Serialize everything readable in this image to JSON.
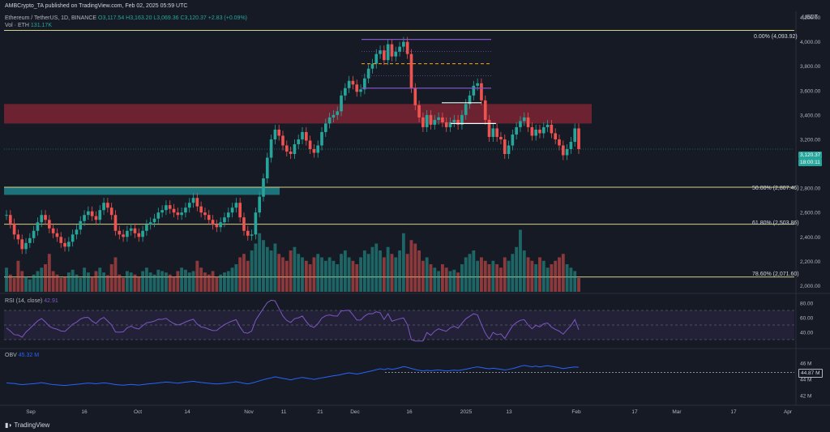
{
  "header": {
    "publisher": "AMBCrypto_TA published on TradingView.com, Feb 02, 2025 05:59 UTC",
    "symbol": "Ethereum / TetherUS, 1D, BINANCE",
    "ohlc": "O3,117.54 H3,163.20 L3,069.36 C3,120.37 +2.83 (+0.09%)",
    "volume": "Vol · ETH",
    "volume_value": "131.17K"
  },
  "price_axis": {
    "currency": "USDT",
    "ticks": [
      "4,200.00",
      "4,000.00",
      "3,800.00",
      "3,600.00",
      "3,400.00",
      "3,200.00",
      "3,000.00",
      "2,800.00",
      "2,600.00",
      "2,400.00",
      "2,200.00",
      "2,000.00"
    ],
    "last_price": "3,120.37",
    "countdown": "18:00:11"
  },
  "fib_levels": [
    {
      "label": "0.00% (4,093.92)",
      "price": 4093.92
    },
    {
      "label": "50.00% (2,807.46)",
      "price": 2807.46
    },
    {
      "label": "61.80% (2,503.86)",
      "price": 2503.86
    },
    {
      "label": "78.60% (2,071.60)",
      "price": 2071.6
    }
  ],
  "rsi": {
    "title": "RSI (14, close)",
    "value": "42.91",
    "ticks": [
      "80.00",
      "60.00",
      "40.00"
    ]
  },
  "obv": {
    "title": "OBV",
    "value": "45.32 M",
    "last": "44.87 M",
    "ticks": [
      "46 M",
      "44 M",
      "42 M"
    ]
  },
  "time_axis": [
    "Sep",
    "16",
    "Oct",
    "14",
    "Nov",
    "11",
    "21",
    "Dec",
    "16",
    "2025",
    "13",
    "Feb",
    "17",
    "Mar",
    "17",
    "Apr"
  ],
  "branding": "TradingView",
  "colors": {
    "up": "#26a69a",
    "down": "#ef5350",
    "fib": "#d6d28a",
    "supply": "#8b2635",
    "demand": "#1e8a91",
    "rsi": "#7e57c2",
    "obv": "#2962ff"
  },
  "chart_data": {
    "type": "candlestick",
    "price_range": [
      1950,
      4250
    ],
    "supply_zone": [
      3330,
      3490
    ],
    "demand_zone": [
      2745,
      2810
    ],
    "close_series": [
      2580,
      2510,
      2420,
      2380,
      2300,
      2350,
      2390,
      2450,
      2520,
      2580,
      2540,
      2470,
      2430,
      2400,
      2350,
      2320,
      2360,
      2420,
      2460,
      2530,
      2580,
      2610,
      2570,
      2540,
      2620,
      2680,
      2640,
      2580,
      2450,
      2420,
      2400,
      2450,
      2470,
      2430,
      2400,
      2450,
      2500,
      2520,
      2550,
      2600,
      2620,
      2660,
      2630,
      2600,
      2580,
      2600,
      2640,
      2680,
      2720,
      2650,
      2600,
      2580,
      2540,
      2500,
      2480,
      2520,
      2560,
      2600,
      2640,
      2680,
      2560,
      2450,
      2410,
      2420,
      2600,
      2730,
      2880,
      3050,
      3200,
      3280,
      3230,
      3150,
      3100,
      3080,
      3160,
      3200,
      3260,
      3190,
      3120,
      3090,
      3150,
      3260,
      3330,
      3380,
      3400,
      3430,
      3560,
      3620,
      3680,
      3650,
      3590,
      3610,
      3700,
      3780,
      3820,
      3900,
      3930,
      3850,
      3980,
      3880,
      3920,
      3960,
      4000,
      3900,
      3620,
      3480,
      3380,
      3300,
      3400,
      3320,
      3360,
      3380,
      3340,
      3300,
      3340,
      3360,
      3320,
      3400,
      3490,
      3560,
      3640,
      3660,
      3520,
      3360,
      3220,
      3290,
      3220,
      3200,
      3080,
      3150,
      3240,
      3300,
      3350,
      3380,
      3300,
      3230,
      3280,
      3250,
      3300,
      3320,
      3250,
      3200,
      3150,
      3070,
      3120,
      3180,
      3290,
      3120
    ],
    "volume_relative": [
      0.35,
      0.25,
      0.2,
      0.45,
      0.3,
      0.22,
      0.18,
      0.25,
      0.3,
      0.35,
      0.4,
      0.55,
      0.3,
      0.25,
      0.2,
      0.22,
      0.28,
      0.32,
      0.25,
      0.2,
      0.35,
      0.28,
      0.22,
      0.3,
      0.35,
      0.28,
      0.24,
      0.4,
      0.5,
      0.25,
      0.2,
      0.3,
      0.28,
      0.25,
      0.22,
      0.3,
      0.35,
      0.28,
      0.25,
      0.32,
      0.3,
      0.28,
      0.25,
      0.22,
      0.3,
      0.35,
      0.32,
      0.28,
      0.3,
      0.45,
      0.35,
      0.28,
      0.25,
      0.3,
      0.22,
      0.25,
      0.28,
      0.3,
      0.35,
      0.4,
      0.5,
      0.55,
      0.45,
      0.6,
      0.7,
      0.85,
      0.75,
      0.65,
      0.6,
      0.7,
      0.55,
      0.5,
      0.45,
      0.6,
      0.65,
      0.55,
      0.5,
      0.45,
      0.4,
      0.5,
      0.55,
      0.5,
      0.45,
      0.5,
      0.45,
      0.4,
      0.55,
      0.6,
      0.5,
      0.45,
      0.4,
      0.5,
      0.6,
      0.55,
      0.65,
      0.7,
      0.6,
      0.5,
      0.65,
      0.55,
      0.5,
      0.6,
      0.85,
      0.55,
      0.75,
      0.7,
      0.6,
      0.45,
      0.5,
      0.4,
      0.35,
      0.3,
      0.4,
      0.35,
      0.3,
      0.32,
      0.28,
      0.4,
      0.5,
      0.55,
      0.6,
      0.45,
      0.5,
      0.45,
      0.4,
      0.45,
      0.4,
      0.35,
      0.5,
      0.45,
      0.55,
      0.65,
      0.9,
      0.6,
      0.5,
      0.45,
      0.4,
      0.5,
      0.45,
      0.35,
      0.4,
      0.45,
      0.5,
      0.55,
      0.4,
      0.35,
      0.3,
      0.2
    ]
  }
}
